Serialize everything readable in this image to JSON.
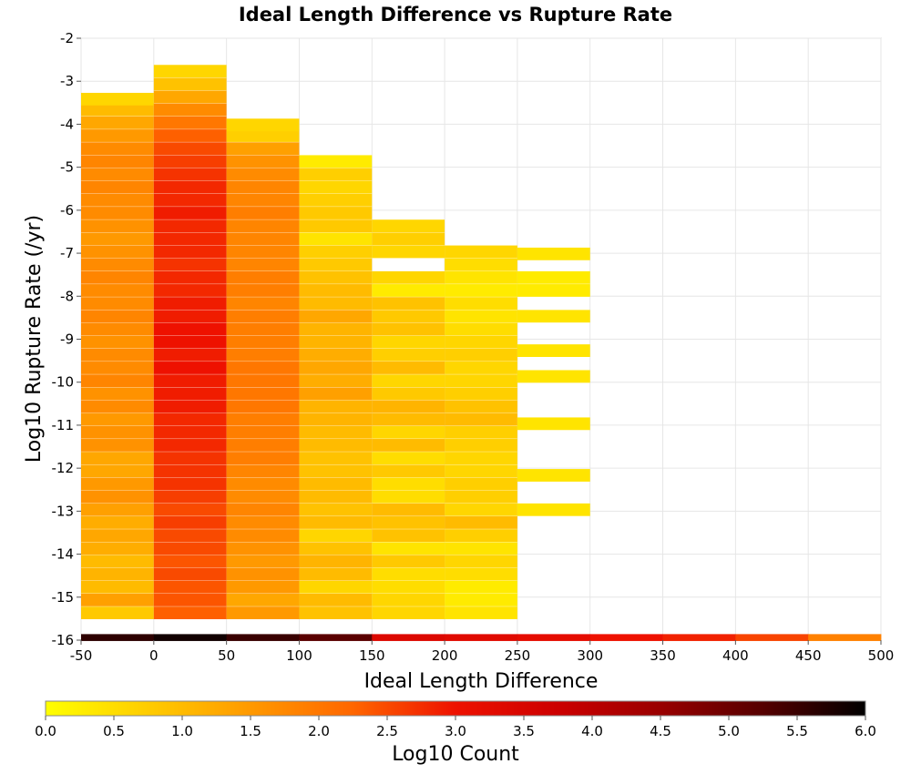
{
  "chart_data": {
    "type": "heatmap",
    "title": "Ideal Length Difference vs Rupture Rate",
    "xlabel": "Ideal Length Difference",
    "ylabel": "Log10 Rupture Rate (/yr)",
    "xlim": [
      -50,
      500
    ],
    "ylim": [
      -16,
      -2
    ],
    "x_ticks": [
      "-50",
      "0",
      "50",
      "100",
      "150",
      "200",
      "250",
      "300",
      "350",
      "400",
      "450",
      "500"
    ],
    "y_ticks": [
      "-2",
      "-3",
      "-4",
      "-5",
      "-6",
      "-7",
      "-8",
      "-9",
      "-10",
      "-11",
      "-12",
      "-13",
      "-14",
      "-15",
      "-16"
    ],
    "x_bin_width": 50,
    "y_bin_height": 0.28,
    "grid": true,
    "colorbar": {
      "label": "Log10 Count",
      "range": [
        0.0,
        6.0
      ],
      "ticks": [
        "0.0",
        "0.5",
        "1.0",
        "1.5",
        "2.0",
        "2.5",
        "3.0",
        "3.5",
        "4.0",
        "4.5",
        "5.0",
        "5.5",
        "6.0"
      ],
      "colors": [
        "#ffff00",
        "#ffcc00",
        "#ff9900",
        "#ff6600",
        "#ee1100",
        "#cc0000",
        "#990000",
        "#550000",
        "#000000"
      ]
    },
    "bottom_row": {
      "y": -16.0,
      "x_starts": [
        -50,
        0,
        50,
        100,
        150,
        200,
        250,
        300,
        350,
        400,
        450
      ],
      "values": [
        5.6,
        5.85,
        5.5,
        5.2,
        3.4,
        3.3,
        3.2,
        3.0,
        2.85,
        2.55,
        1.85
      ]
    },
    "columns": [
      {
        "x_start": -50,
        "bins": [
          [
            -15.5,
            0.8
          ],
          [
            -15.2,
            1.4
          ],
          [
            -14.9,
            1.0
          ],
          [
            -14.6,
            1.1
          ],
          [
            -14.3,
            1.0
          ],
          [
            -14.0,
            1.2
          ],
          [
            -13.7,
            1.3
          ],
          [
            -13.4,
            1.2
          ],
          [
            -13.1,
            1.4
          ],
          [
            -12.8,
            1.6
          ],
          [
            -12.5,
            1.5
          ],
          [
            -12.2,
            1.3
          ],
          [
            -11.9,
            1.3
          ],
          [
            -11.6,
            1.6
          ],
          [
            -11.3,
            1.6
          ],
          [
            -11.0,
            1.5
          ],
          [
            -10.7,
            1.7
          ],
          [
            -10.4,
            1.6
          ],
          [
            -10.1,
            1.8
          ],
          [
            -9.8,
            1.7
          ],
          [
            -9.5,
            1.7
          ],
          [
            -9.2,
            1.6
          ],
          [
            -8.9,
            1.7
          ],
          [
            -8.6,
            1.8
          ],
          [
            -8.3,
            1.7
          ],
          [
            -8.0,
            1.7
          ],
          [
            -7.7,
            1.8
          ],
          [
            -7.4,
            1.7
          ],
          [
            -7.1,
            1.6
          ],
          [
            -6.8,
            1.5
          ],
          [
            -6.5,
            1.6
          ],
          [
            -6.2,
            1.7
          ],
          [
            -5.9,
            1.7
          ],
          [
            -5.6,
            1.8
          ],
          [
            -5.3,
            1.7
          ],
          [
            -5.0,
            1.8
          ],
          [
            -4.7,
            1.7
          ],
          [
            -4.4,
            1.5
          ],
          [
            -4.1,
            1.3
          ],
          [
            -3.8,
            1.0
          ],
          [
            -3.55,
            0.6
          ]
        ]
      },
      {
        "x_start": 0,
        "bins": [
          [
            -15.5,
            2.3
          ],
          [
            -15.2,
            2.4
          ],
          [
            -14.9,
            2.4
          ],
          [
            -14.6,
            2.5
          ],
          [
            -14.3,
            2.4
          ],
          [
            -14.0,
            2.5
          ],
          [
            -13.7,
            2.5
          ],
          [
            -13.4,
            2.6
          ],
          [
            -13.1,
            2.5
          ],
          [
            -12.8,
            2.6
          ],
          [
            -12.5,
            2.7
          ],
          [
            -12.2,
            2.7
          ],
          [
            -11.9,
            2.7
          ],
          [
            -11.6,
            2.8
          ],
          [
            -11.3,
            2.8
          ],
          [
            -11.0,
            2.8
          ],
          [
            -10.7,
            2.9
          ],
          [
            -10.4,
            2.9
          ],
          [
            -10.1,
            2.9
          ],
          [
            -9.8,
            3.0
          ],
          [
            -9.5,
            2.9
          ],
          [
            -9.2,
            3.0
          ],
          [
            -8.9,
            3.0
          ],
          [
            -8.6,
            2.9
          ],
          [
            -8.3,
            2.9
          ],
          [
            -8.0,
            2.8
          ],
          [
            -7.7,
            2.8
          ],
          [
            -7.4,
            2.7
          ],
          [
            -7.1,
            2.8
          ],
          [
            -6.8,
            2.8
          ],
          [
            -6.5,
            2.8
          ],
          [
            -6.2,
            2.9
          ],
          [
            -5.9,
            2.8
          ],
          [
            -5.6,
            2.8
          ],
          [
            -5.3,
            2.7
          ],
          [
            -5.0,
            2.6
          ],
          [
            -4.7,
            2.5
          ],
          [
            -4.4,
            2.3
          ],
          [
            -4.1,
            2.0
          ],
          [
            -3.8,
            1.7
          ],
          [
            -3.5,
            1.3
          ],
          [
            -3.2,
            0.9
          ],
          [
            -2.9,
            0.6
          ]
        ]
      },
      {
        "x_start": 50,
        "bins": [
          [
            -15.5,
            1.5
          ],
          [
            -15.2,
            1.3
          ],
          [
            -14.9,
            1.5
          ],
          [
            -14.6,
            1.6
          ],
          [
            -14.3,
            1.5
          ],
          [
            -14.0,
            1.6
          ],
          [
            -13.7,
            1.7
          ],
          [
            -13.4,
            1.7
          ],
          [
            -13.1,
            1.8
          ],
          [
            -12.8,
            1.7
          ],
          [
            -12.5,
            1.7
          ],
          [
            -12.2,
            1.8
          ],
          [
            -11.9,
            1.9
          ],
          [
            -11.6,
            1.9
          ],
          [
            -11.3,
            1.9
          ],
          [
            -11.0,
            1.9
          ],
          [
            -10.7,
            2.0
          ],
          [
            -10.4,
            2.0
          ],
          [
            -10.1,
            2.0
          ],
          [
            -9.8,
            2.0
          ],
          [
            -9.5,
            1.9
          ],
          [
            -9.2,
            1.9
          ],
          [
            -8.9,
            1.9
          ],
          [
            -8.6,
            1.9
          ],
          [
            -8.3,
            1.8
          ],
          [
            -8.0,
            1.9
          ],
          [
            -7.7,
            1.9
          ],
          [
            -7.4,
            1.8
          ],
          [
            -7.1,
            1.8
          ],
          [
            -6.8,
            1.8
          ],
          [
            -6.5,
            1.8
          ],
          [
            -6.2,
            1.9
          ],
          [
            -5.9,
            1.8
          ],
          [
            -5.6,
            1.8
          ],
          [
            -5.3,
            1.7
          ],
          [
            -5.0,
            1.6
          ],
          [
            -4.7,
            1.4
          ],
          [
            -4.4,
            0.7
          ],
          [
            -4.15,
            0.6
          ]
        ]
      },
      {
        "x_start": 100,
        "bins": [
          [
            -15.5,
            0.9
          ],
          [
            -15.2,
            1.0
          ],
          [
            -14.9,
            0.6
          ],
          [
            -14.6,
            1.0
          ],
          [
            -14.3,
            1.1
          ],
          [
            -14.0,
            0.9
          ],
          [
            -13.7,
            0.6
          ],
          [
            -13.4,
            1.0
          ],
          [
            -13.1,
            0.9
          ],
          [
            -12.8,
            1.0
          ],
          [
            -12.5,
            1.0
          ],
          [
            -12.2,
            0.9
          ],
          [
            -11.9,
            0.9
          ],
          [
            -11.6,
            1.0
          ],
          [
            -11.3,
            1.0
          ],
          [
            -11.0,
            1.1
          ],
          [
            -10.7,
            1.1
          ],
          [
            -10.4,
            1.4
          ],
          [
            -10.1,
            1.2
          ],
          [
            -9.8,
            1.3
          ],
          [
            -9.5,
            1.2
          ],
          [
            -9.2,
            1.1
          ],
          [
            -8.9,
            1.1
          ],
          [
            -8.6,
            1.3
          ],
          [
            -8.3,
            1.0
          ],
          [
            -8.0,
            1.0
          ],
          [
            -7.7,
            0.9
          ],
          [
            -7.4,
            0.8
          ],
          [
            -7.1,
            0.7
          ],
          [
            -6.8,
            0.4
          ],
          [
            -6.5,
            0.8
          ],
          [
            -6.2,
            0.8
          ],
          [
            -5.9,
            0.7
          ],
          [
            -5.6,
            0.6
          ],
          [
            -5.3,
            0.7
          ],
          [
            -5.0,
            0.3
          ]
        ]
      },
      {
        "x_start": 150,
        "bins": [
          [
            -15.5,
            0.6
          ],
          [
            -15.2,
            0.6
          ],
          [
            -14.9,
            0.5
          ],
          [
            -14.6,
            0.5
          ],
          [
            -14.3,
            0.8
          ],
          [
            -14.0,
            0.4
          ],
          [
            -13.7,
            0.9
          ],
          [
            -13.4,
            0.9
          ],
          [
            -13.1,
            1.0
          ],
          [
            -12.8,
            0.5
          ],
          [
            -12.5,
            0.5
          ],
          [
            -12.2,
            0.8
          ],
          [
            -11.9,
            0.5
          ],
          [
            -11.6,
            1.0
          ],
          [
            -11.3,
            0.6
          ],
          [
            -11.0,
            1.0
          ],
          [
            -10.7,
            1.1
          ],
          [
            -10.4,
            0.8
          ],
          [
            -10.1,
            0.6
          ],
          [
            -9.8,
            1.0
          ],
          [
            -9.5,
            0.7
          ],
          [
            -9.2,
            0.6
          ],
          [
            -8.9,
            0.9
          ],
          [
            -8.6,
            0.8
          ],
          [
            -8.3,
            0.9
          ],
          [
            -8.0,
            0.3
          ],
          [
            -7.7,
            0.6
          ],
          [
            -7.1,
            0.6
          ],
          [
            -6.8,
            0.7
          ],
          [
            -6.5,
            0.6
          ]
        ]
      },
      {
        "x_start": 200,
        "bins": [
          [
            -15.5,
            0.4
          ],
          [
            -15.2,
            0.3
          ],
          [
            -14.9,
            0.3
          ],
          [
            -14.6,
            0.5
          ],
          [
            -14.3,
            0.6
          ],
          [
            -14.0,
            0.4
          ],
          [
            -13.7,
            0.7
          ],
          [
            -13.4,
            1.0
          ],
          [
            -13.1,
            0.6
          ],
          [
            -12.8,
            0.7
          ],
          [
            -12.5,
            0.7
          ],
          [
            -12.2,
            0.6
          ],
          [
            -11.9,
            0.6
          ],
          [
            -11.6,
            0.7
          ],
          [
            -11.3,
            0.7
          ],
          [
            -11.0,
            1.0
          ],
          [
            -10.7,
            0.9
          ],
          [
            -10.4,
            0.7
          ],
          [
            -10.1,
            0.6
          ],
          [
            -9.8,
            0.6
          ],
          [
            -9.5,
            0.7
          ],
          [
            -9.2,
            0.6
          ],
          [
            -8.9,
            0.5
          ],
          [
            -8.6,
            0.4
          ],
          [
            -8.3,
            0.5
          ],
          [
            -8.0,
            0.3
          ],
          [
            -7.7,
            0.4
          ],
          [
            -7.4,
            0.5
          ],
          [
            -7.1,
            0.6
          ]
        ]
      },
      {
        "x_start": 250,
        "bins": [
          [
            -13.1,
            0.4
          ],
          [
            -12.3,
            0.4
          ],
          [
            -11.1,
            0.4
          ],
          [
            -10.0,
            0.4
          ],
          [
            -9.4,
            0.4
          ],
          [
            -8.6,
            0.4
          ],
          [
            -8.0,
            0.3
          ],
          [
            -7.7,
            0.3
          ],
          [
            -7.15,
            0.4
          ]
        ]
      }
    ]
  }
}
